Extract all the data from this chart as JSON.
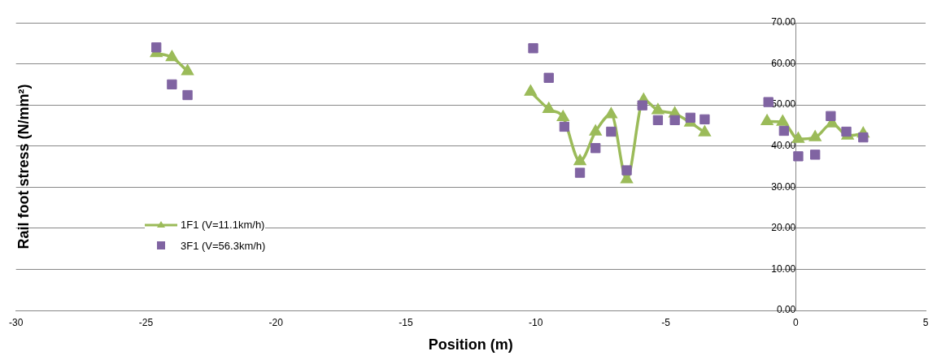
{
  "chart_data": {
    "type": "line",
    "xlabel": "Position (m)",
    "ylabel": "Rail foot stress (N/mm²)",
    "xlim": [
      -30,
      5
    ],
    "xticks": [
      -30,
      -25,
      -20,
      -15,
      -10,
      -5,
      0,
      5
    ],
    "ylim": [
      0,
      70
    ],
    "yticks": [
      {
        "value": 0,
        "label": "0.00"
      },
      {
        "value": 10,
        "label": "10.00"
      },
      {
        "value": 20,
        "label": "20.00"
      },
      {
        "value": 30,
        "label": "30.00"
      },
      {
        "value": 40,
        "label": "40.00"
      },
      {
        "value": 50,
        "label": "50.00"
      },
      {
        "value": 60,
        "label": "60.00"
      },
      {
        "value": 70,
        "label": "70.00"
      }
    ],
    "grid": "y",
    "legend": "left",
    "series": [
      {
        "name": "1F1 (V=11.1km/h)",
        "type": "line",
        "color": "#9bbb59",
        "marker": "triangle",
        "x": [
          -24.6,
          -24.0,
          -23.4,
          null,
          -10.2,
          -9.5,
          -8.95,
          -8.3,
          -7.7,
          -7.1,
          -6.5,
          -5.85,
          -5.3,
          -4.65,
          -4.05,
          -3.5,
          null,
          -1.1,
          -0.5,
          0.1,
          0.75,
          1.4,
          2.0,
          2.6
        ],
        "values": [
          62.6,
          61.6,
          58.2,
          null,
          53.2,
          49.0,
          47.0,
          36.3,
          43.5,
          47.7,
          31.9,
          51.2,
          48.7,
          47.9,
          45.7,
          43.3,
          null,
          46.0,
          45.9,
          41.7,
          42.1,
          45.5,
          42.5,
          43.0
        ]
      },
      {
        "name": "3F1 (V=56.3km/h)",
        "type": "scatter",
        "color": "#8064a2",
        "marker": "square",
        "x": [
          -24.6,
          -24.0,
          -23.4,
          -10.1,
          -9.5,
          -8.9,
          -8.3,
          -7.7,
          -7.1,
          -6.5,
          -5.9,
          -5.3,
          -4.65,
          -4.05,
          -3.5,
          -1.05,
          -0.45,
          0.1,
          0.75,
          1.35,
          1.95,
          2.6
        ],
        "values": [
          64.0,
          55.0,
          52.4,
          63.8,
          56.6,
          44.7,
          33.5,
          39.5,
          43.5,
          34.1,
          49.9,
          46.3,
          46.3,
          46.9,
          46.5,
          50.7,
          43.7,
          37.5,
          37.9,
          47.3,
          43.5,
          42.1
        ]
      }
    ]
  }
}
